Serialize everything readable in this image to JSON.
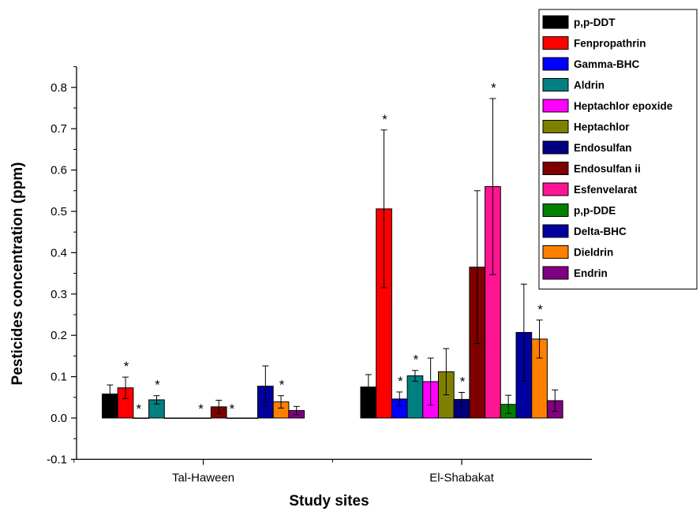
{
  "chart_data": {
    "type": "bar",
    "title": "",
    "xlabel": "Study sites",
    "ylabel": "Pesticides concentration (ppm)",
    "ylim": [
      -0.1,
      0.85
    ],
    "y_ticks": [
      "-0.1",
      "0.0",
      "0.1",
      "0.2",
      "0.3",
      "0.4",
      "0.5",
      "0.6",
      "0.7",
      "0.8"
    ],
    "y_tick_values": [
      -0.1,
      0.0,
      0.1,
      0.2,
      0.3,
      0.4,
      0.5,
      0.6,
      0.7,
      0.8
    ],
    "categories": [
      "Tal-Haween",
      "El-Shabakat"
    ],
    "grid": false,
    "legend_position": "top-right",
    "significance_marker": "*",
    "series": [
      {
        "name": "p,p-DDT",
        "color": "#000000",
        "values": [
          0.058,
          0.075
        ],
        "errors": [
          0.022,
          0.03
        ],
        "significant": [
          false,
          false
        ]
      },
      {
        "name": "Fenpropathrin",
        "color": "#ff0000",
        "values": [
          0.073,
          0.506
        ],
        "errors": [
          0.026,
          0.191
        ],
        "significant": [
          true,
          true
        ]
      },
      {
        "name": "Gamma-BHC",
        "color": "#0000ff",
        "values": [
          0.0,
          0.046
        ],
        "errors": [
          0.0,
          0.017
        ],
        "significant": [
          true,
          true
        ]
      },
      {
        "name": "Aldrin",
        "color": "#008080",
        "values": [
          0.044,
          0.102
        ],
        "errors": [
          0.01,
          0.013
        ],
        "significant": [
          true,
          true
        ]
      },
      {
        "name": "Heptachlor epoxide",
        "color": "#ff00ff",
        "values": [
          0.0,
          0.088
        ],
        "errors": [
          0.0,
          0.057
        ],
        "significant": [
          false,
          false
        ]
      },
      {
        "name": "Heptachlor",
        "color": "#808000",
        "values": [
          0.0,
          0.112
        ],
        "errors": [
          0.0,
          0.056
        ],
        "significant": [
          false,
          false
        ]
      },
      {
        "name": "Endosulfan",
        "color": "#000080",
        "values": [
          0.0,
          0.045
        ],
        "errors": [
          0.0,
          0.017
        ],
        "significant": [
          true,
          true
        ]
      },
      {
        "name": "Endosulfan ii",
        "color": "#800000",
        "values": [
          0.027,
          0.365
        ],
        "errors": [
          0.016,
          0.185
        ],
        "significant": [
          false,
          false
        ]
      },
      {
        "name": "Esfenvelarat",
        "color": "#ff1493",
        "values": [
          0.0,
          0.56
        ],
        "errors": [
          0.0,
          0.213
        ],
        "significant": [
          true,
          true
        ]
      },
      {
        "name": "p,p-DDE",
        "color": "#008000",
        "values": [
          0.0,
          0.033
        ],
        "errors": [
          0.0,
          0.022
        ],
        "significant": [
          false,
          false
        ]
      },
      {
        "name": "Delta-BHC",
        "color": "#0000a0",
        "values": [
          0.077,
          0.207
        ],
        "errors": [
          0.049,
          0.117
        ],
        "significant": [
          false,
          false
        ]
      },
      {
        "name": "Dieldrin",
        "color": "#ff8000",
        "values": [
          0.039,
          0.191
        ],
        "errors": [
          0.015,
          0.046
        ],
        "significant": [
          true,
          true
        ]
      },
      {
        "name": "Endrin",
        "color": "#800080",
        "values": [
          0.018,
          0.042
        ],
        "errors": [
          0.01,
          0.026
        ],
        "significant": [
          false,
          false
        ]
      }
    ]
  }
}
